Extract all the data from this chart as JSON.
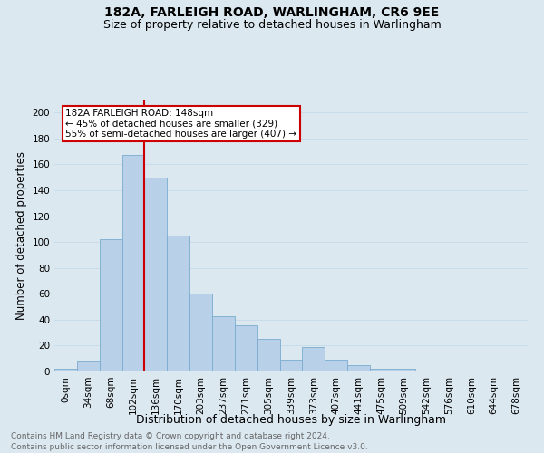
{
  "title": "182A, FARLEIGH ROAD, WARLINGHAM, CR6 9EE",
  "subtitle": "Size of property relative to detached houses in Warlingham",
  "xlabel": "Distribution of detached houses by size in Warlingham",
  "ylabel": "Number of detached properties",
  "footnote1": "Contains HM Land Registry data © Crown copyright and database right 2024.",
  "footnote2": "Contains public sector information licensed under the Open Government Licence v3.0.",
  "bar_labels": [
    "0sqm",
    "34sqm",
    "68sqm",
    "102sqm",
    "136sqm",
    "170sqm",
    "203sqm",
    "237sqm",
    "271sqm",
    "305sqm",
    "339sqm",
    "373sqm",
    "407sqm",
    "441sqm",
    "475sqm",
    "509sqm",
    "542sqm",
    "576sqm",
    "610sqm",
    "644sqm",
    "678sqm"
  ],
  "bar_values": [
    2,
    8,
    102,
    167,
    150,
    105,
    60,
    43,
    36,
    25,
    9,
    19,
    9,
    5,
    2,
    2,
    1,
    1,
    0,
    0,
    1
  ],
  "bar_color": "#b8d0e8",
  "bar_edge_color": "#7aaad0",
  "ylim": [
    0,
    210
  ],
  "yticks": [
    0,
    20,
    40,
    60,
    80,
    100,
    120,
    140,
    160,
    180,
    200
  ],
  "grid_color": "#c8dcea",
  "background_color": "#dce8f0",
  "vline_color": "#cc0000",
  "annotation_text": "182A FARLEIGH ROAD: 148sqm\n← 45% of detached houses are smaller (329)\n55% of semi-detached houses are larger (407) →",
  "annotation_box_color": "#ffffff",
  "annotation_box_edge": "#cc0000",
  "title_fontsize": 10,
  "subtitle_fontsize": 9,
  "tick_fontsize": 7.5,
  "ylabel_fontsize": 8.5,
  "xlabel_fontsize": 9,
  "footnote_color": "#666666",
  "footnote_fontsize": 6.5
}
